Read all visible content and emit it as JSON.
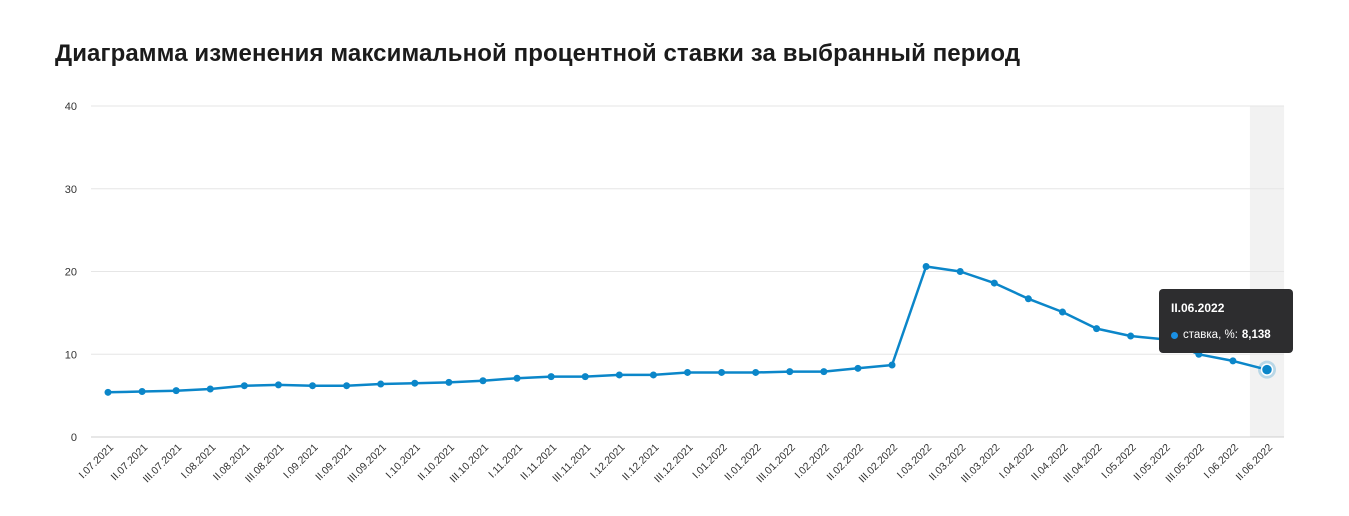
{
  "title": "Диаграмма изменения максимальной процентной ставки за выбранный период",
  "colors": {
    "line": "#0b86c9",
    "grid": "#e6e6e6",
    "highlight": "#f2f2f2"
  },
  "chart_data": {
    "type": "line",
    "ylim": [
      0,
      40
    ],
    "yticks": [
      0,
      10,
      20,
      30,
      40
    ],
    "grid": true,
    "categories": [
      "I.07.2021",
      "II.07.2021",
      "III.07.2021",
      "I.08.2021",
      "II.08.2021",
      "III.08.2021",
      "I.09.2021",
      "II.09.2021",
      "III.09.2021",
      "I.10.2021",
      "II.10.2021",
      "III.10.2021",
      "I.11.2021",
      "II.11.2021",
      "III.11.2021",
      "I.12.2021",
      "II.12.2021",
      "III.12.2021",
      "I.01.2022",
      "II.01.2022",
      "III.01.2022",
      "I.02.2022",
      "II.02.2022",
      "III.02.2022",
      "I.03.2022",
      "II.03.2022",
      "III.03.2022",
      "I.04.2022",
      "II.04.2022",
      "III.04.2022",
      "I.05.2022",
      "II.05.2022",
      "III.05.2022",
      "I.06.2022",
      "II.06.2022"
    ],
    "series": [
      {
        "values": [
          5.4,
          5.5,
          5.6,
          5.8,
          6.2,
          6.3,
          6.2,
          6.2,
          6.4,
          6.5,
          6.6,
          6.8,
          7.1,
          7.3,
          7.3,
          7.5,
          7.5,
          7.8,
          7.8,
          7.8,
          7.9,
          7.9,
          8.3,
          8.7,
          20.6,
          20.0,
          18.6,
          16.7,
          15.1,
          13.1,
          12.2,
          11.8,
          10.0,
          9.2,
          8.138
        ]
      }
    ],
    "highlight_index": 34
  },
  "tooltip": {
    "title": "II.06.2022",
    "series_label": "ставка, %:",
    "value": "8,138"
  }
}
